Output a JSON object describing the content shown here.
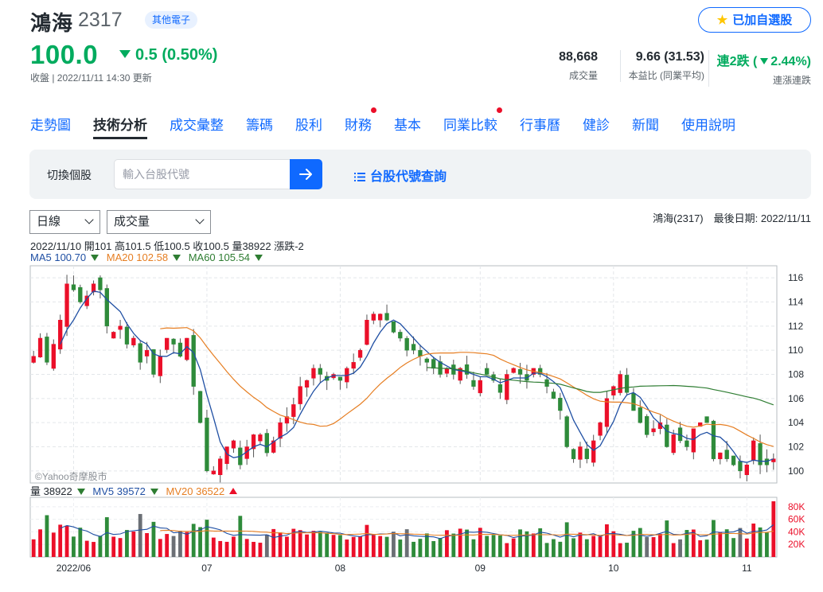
{
  "header": {
    "name": "鴻海",
    "code": "2317",
    "category": "其他電子",
    "price": "100.0",
    "change": "0.5 (0.50%)",
    "status": "收盤 | 2022/11/11 14:30 更新",
    "favorite_label": "已加自選股",
    "stats": [
      {
        "value": "88,668",
        "label": "成交量"
      },
      {
        "value": "9.66 (31.53)",
        "label": "本益比 (同業平均)"
      },
      {
        "value_prefix": "連2跌 (",
        "value_pct": "2.44%",
        "value_suffix": ")",
        "label": "連漲連跌"
      }
    ]
  },
  "tabs": [
    {
      "label": "走勢圖",
      "active": false,
      "dot": false
    },
    {
      "label": "技術分析",
      "active": true,
      "dot": false
    },
    {
      "label": "成交彙整",
      "active": false,
      "dot": false
    },
    {
      "label": "籌碼",
      "active": false,
      "dot": false
    },
    {
      "label": "股利",
      "active": false,
      "dot": false
    },
    {
      "label": "財務",
      "active": false,
      "dot": true
    },
    {
      "label": "基本",
      "active": false,
      "dot": false
    },
    {
      "label": "同業比較",
      "active": false,
      "dot": true
    },
    {
      "label": "行事曆",
      "active": false,
      "dot": false
    },
    {
      "label": "健診",
      "active": false,
      "dot": false
    },
    {
      "label": "新聞",
      "active": false,
      "dot": false
    },
    {
      "label": "使用說明",
      "active": false,
      "dot": false
    }
  ],
  "search": {
    "label": "切換個股",
    "placeholder": "輸入台股代號",
    "lookup_label": "台股代號查詢"
  },
  "controls": {
    "period": "日線",
    "indicator": "成交量",
    "info": "鴻海(2317)　最後日期: 2022/11/11"
  },
  "ohlc_text": "2022/11/10 開101 高101.5 低100.5 收100.5 量38922 漲跌-2",
  "ma_legend": [
    {
      "label": "MA5 100.70",
      "color": "#1f4fa3"
    },
    {
      "label": "MA20 102.58",
      "color": "#e67e22"
    },
    {
      "label": "MA60 105.54",
      "color": "#2e7d32"
    }
  ],
  "vol_legend": [
    {
      "label": "量 38922",
      "color": "#232a31",
      "dir": "down"
    },
    {
      "label": "MV5 39572",
      "color": "#1f4fa3",
      "dir": "down"
    },
    {
      "label": "MV20 36522",
      "color": "#e67e22",
      "dir": "up"
    }
  ],
  "watermark": "©Yahoo奇摩股市",
  "colors": {
    "up": "#eb0f29",
    "down": "#2e8b3a",
    "accent": "#0f69ff",
    "ma5": "#1f4fa3",
    "ma20": "#e67e22",
    "ma60": "#2e7d32",
    "mv5": "#1f4fa3",
    "mv20": "#e67e22"
  },
  "chart_data": {
    "type": "candlestick",
    "price_axis": {
      "min": 99,
      "max": 117,
      "ticks": [
        "100",
        "102",
        "104",
        "106",
        "108",
        "110",
        "112",
        "114",
        "116"
      ]
    },
    "volume_axis": {
      "max": 95000,
      "ticks": [
        "20K",
        "40K",
        "60K",
        "80K"
      ]
    },
    "x_labels": [
      "2022/06",
      "07",
      "08",
      "09",
      "10",
      "11"
    ],
    "x_label_index": [
      6,
      26,
      46,
      67,
      87,
      107
    ],
    "closes": [
      109.5,
      111,
      109,
      110.5,
      112.5,
      115.5,
      115,
      114,
      114.5,
      115.5,
      115,
      112,
      111.5,
      112,
      110.5,
      111,
      109,
      110,
      108,
      109.5,
      111,
      110.5,
      109.5,
      111,
      107,
      104,
      100,
      100,
      101,
      102,
      102.5,
      100.5,
      102,
      103,
      103,
      101.5,
      102.5,
      104,
      104.5,
      105.5,
      107,
      107.5,
      108.5,
      108,
      107.5,
      108,
      107.5,
      108.5,
      109,
      110,
      112.5,
      113,
      113,
      112.5,
      111.5,
      111,
      110,
      110,
      109.5,
      109,
      108.5,
      108,
      108.5,
      108,
      108.5,
      108,
      107,
      107.5,
      108,
      107.5,
      106.5,
      108,
      108.5,
      108,
      107.5,
      108.5,
      108,
      107,
      106,
      105,
      102,
      101,
      102,
      101,
      102.5,
      104,
      106,
      107,
      108,
      106.5,
      105,
      104,
      103,
      103.5,
      104,
      102,
      103,
      102.5,
      102,
      103.5,
      104,
      104,
      101,
      101.5,
      101,
      100.5,
      100,
      100.5,
      102.5,
      100.5,
      100.5,
      101
    ],
    "series": [
      {
        "name": "量",
        "legend_value": "38922"
      },
      {
        "name": "MV5",
        "legend_value": "39572"
      },
      {
        "name": "MV20",
        "legend_value": "36522"
      }
    ]
  }
}
